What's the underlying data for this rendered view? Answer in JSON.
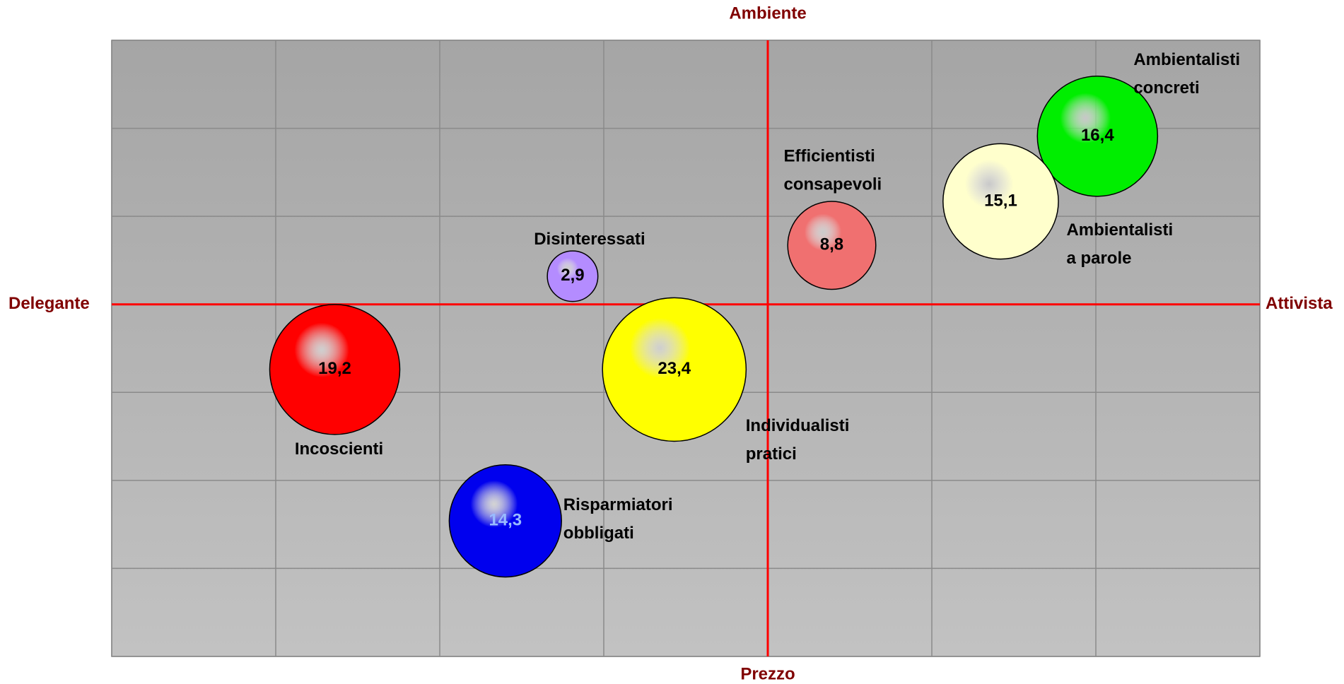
{
  "chart_data": {
    "type": "bubble",
    "axis_labels": {
      "top": "Ambiente",
      "bottom": "Prezzo",
      "left": "Delegante",
      "right": "Attivista"
    },
    "xlim": [
      -4,
      3
    ],
    "xticks": [
      -4,
      -3,
      -2,
      -1,
      0,
      1,
      2,
      3
    ],
    "ylim": [
      -4,
      3
    ],
    "yticks": [
      -4,
      -3,
      -2,
      -1,
      0,
      1,
      2,
      3
    ],
    "grid": true,
    "axis_color": "#ff0000",
    "axis_label_color": "#800000",
    "series": [
      {
        "name": "Ambientalisti concreti",
        "color": "#00ee00",
        "label_color": "#000000",
        "x": [
          2.01
        ],
        "values": [
          1.91
        ],
        "sizes": [
          16.4
        ],
        "value_labels": [
          "16,4"
        ]
      },
      {
        "name": "Ambientalisti a parole",
        "color": "#ffffcc",
        "label_color": "#000000",
        "x": [
          1.42
        ],
        "values": [
          1.17
        ],
        "sizes": [
          15.1
        ],
        "value_labels": [
          "15,1"
        ]
      },
      {
        "name": "Efficientisti consapevoli",
        "color": "#f07070",
        "label_color": "#000000",
        "x": [
          0.39
        ],
        "values": [
          0.67
        ],
        "sizes": [
          8.8
        ],
        "value_labels": [
          "8,8"
        ]
      },
      {
        "name": "Disinteressati",
        "color": "#b48cff",
        "label_color": "#000000",
        "x": [
          -1.19
        ],
        "values": [
          0.32
        ],
        "sizes": [
          2.9
        ],
        "value_labels": [
          "2,9"
        ]
      },
      {
        "name": "Incoscienti",
        "color": "#ff0000",
        "label_color": "#000000",
        "x": [
          -2.64
        ],
        "values": [
          -0.74
        ],
        "sizes": [
          19.2
        ],
        "value_labels": [
          "19,2"
        ]
      },
      {
        "name": "Individualisti pratici",
        "color": "#ffff00",
        "label_color": "#000000",
        "x": [
          -0.57
        ],
        "values": [
          -0.74
        ],
        "sizes": [
          23.4
        ],
        "value_labels": [
          "23,4"
        ]
      },
      {
        "name": "Risparmiatori obbligati",
        "color": "#0000ee",
        "label_color": "#99bbff",
        "x": [
          -1.6
        ],
        "values": [
          -2.46
        ],
        "sizes": [
          14.3
        ],
        "value_labels": [
          "14,3"
        ]
      }
    ]
  }
}
